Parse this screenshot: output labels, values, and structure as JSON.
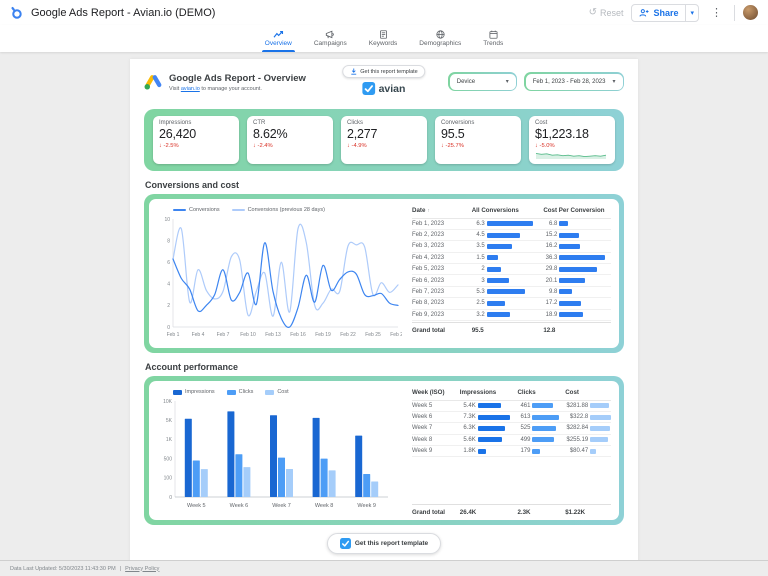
{
  "topbar": {
    "title": "Google Ads Report - Avian.io (DEMO)",
    "reset_label": "Reset",
    "share_label": "Share"
  },
  "tabs": [
    {
      "label": "Overview",
      "icon": "trending-up-icon",
      "active": true
    },
    {
      "label": "Campaigns",
      "icon": "megaphone-icon",
      "active": false
    },
    {
      "label": "Keywords",
      "icon": "document-icon",
      "active": false
    },
    {
      "label": "Demographics",
      "icon": "globe-icon",
      "active": false
    },
    {
      "label": "Trends",
      "icon": "calendar-icon",
      "active": false
    }
  ],
  "header": {
    "title": "Google Ads Report - Overview",
    "subtitle_prefix": "Visit ",
    "subtitle_link": "avian.io",
    "subtitle_suffix": " to manage your account.",
    "template_button": "Get this report template",
    "brand": "avian",
    "device_filter": "Device",
    "date_range": "Feb 1, 2023 - Feb 28, 2023"
  },
  "scorecards": [
    {
      "label": "Impressions",
      "value": "26,420",
      "delta": "-2.5%"
    },
    {
      "label": "CTR",
      "value": "8.62%",
      "delta": "-2.4%"
    },
    {
      "label": "Clicks",
      "value": "2,277",
      "delta": "-4.9%"
    },
    {
      "label": "Conversions",
      "value": "95.5",
      "delta": "-25.7%"
    },
    {
      "label": "Cost",
      "value": "$1,223.18",
      "delta": "-5.0%",
      "spark_color": "#57bb8a",
      "spark_values": [
        2.7,
        2.6,
        2.65,
        2.5,
        2.55,
        2.45,
        2.5,
        2.4,
        2.45,
        2.35,
        2.4,
        2.45,
        2.4,
        2.5
      ]
    }
  ],
  "sections": {
    "conversions": {
      "title": "Conversions and cost",
      "table": {
        "columns": [
          {
            "label": "Date",
            "sorted": true
          },
          {
            "label": "All Conversions",
            "sorted": false
          },
          {
            "label": "Cost Per Conversion",
            "sorted": false
          }
        ],
        "bar_colors": [
          "#2e7df0",
          "#2e7df0"
        ],
        "rows": [
          {
            "label": "Feb 1, 2023",
            "cells": [
              {
                "t": "6.3",
                "v": 6.3
              },
              {
                "t": "6.8",
                "v": 6.8
              }
            ]
          },
          {
            "label": "Feb 2, 2023",
            "cells": [
              {
                "t": "4.5",
                "v": 4.5
              },
              {
                "t": "15.2",
                "v": 15.2
              }
            ]
          },
          {
            "label": "Feb 3, 2023",
            "cells": [
              {
                "t": "3.5",
                "v": 3.5
              },
              {
                "t": "16.2",
                "v": 16.2
              }
            ]
          },
          {
            "label": "Feb 4, 2023",
            "cells": [
              {
                "t": "1.5",
                "v": 1.5
              },
              {
                "t": "36.3",
                "v": 36.3
              }
            ]
          },
          {
            "label": "Feb 5, 2023",
            "cells": [
              {
                "t": "2",
                "v": 2
              },
              {
                "t": "29.8",
                "v": 29.8
              }
            ]
          },
          {
            "label": "Feb 6, 2023",
            "cells": [
              {
                "t": "3",
                "v": 3
              },
              {
                "t": "20.1",
                "v": 20.1
              }
            ]
          },
          {
            "label": "Feb 7, 2023",
            "cells": [
              {
                "t": "5.3",
                "v": 5.3
              },
              {
                "t": "9.8",
                "v": 9.8
              }
            ]
          },
          {
            "label": "Feb 8, 2023",
            "cells": [
              {
                "t": "2.5",
                "v": 2.5
              },
              {
                "t": "17.2",
                "v": 17.2
              }
            ]
          },
          {
            "label": "Feb 9, 2023",
            "cells": [
              {
                "t": "3.2",
                "v": 3.2
              },
              {
                "t": "18.9",
                "v": 18.9
              }
            ]
          }
        ],
        "grand_total": {
          "label": "Grand total",
          "cells": [
            "95.5",
            "12.8"
          ]
        }
      }
    },
    "account": {
      "title": "Account performance",
      "table": {
        "columns": [
          {
            "label": "Week (ISO)",
            "sorted": false
          },
          {
            "label": "Impressions",
            "sorted": false
          },
          {
            "label": "Clicks",
            "sorted": false
          },
          {
            "label": "Cost",
            "sorted": false
          }
        ],
        "bar_colors": [
          "#1a73e8",
          "#4d9df6",
          "#a5cdfa"
        ],
        "rows": [
          {
            "label": "Week 5",
            "cells": [
              {
                "t": "5.4K",
                "v": 5400
              },
              {
                "t": "461",
                "v": 461
              },
              {
                "t": "$281.88",
                "v": 281.88
              }
            ]
          },
          {
            "label": "Week 6",
            "cells": [
              {
                "t": "7.3K",
                "v": 7300
              },
              {
                "t": "613",
                "v": 613
              },
              {
                "t": "$322.8",
                "v": 322.8
              }
            ]
          },
          {
            "label": "Week 7",
            "cells": [
              {
                "t": "6.3K",
                "v": 6300
              },
              {
                "t": "525",
                "v": 525
              },
              {
                "t": "$282.84",
                "v": 282.84
              }
            ]
          },
          {
            "label": "Week 8",
            "cells": [
              {
                "t": "5.6K",
                "v": 5600
              },
              {
                "t": "499",
                "v": 499
              },
              {
                "t": "$255.19",
                "v": 255.19
              }
            ]
          },
          {
            "label": "Week 9",
            "cells": [
              {
                "t": "1.8K",
                "v": 1800
              },
              {
                "t": "179",
                "v": 179
              },
              {
                "t": "$80.47",
                "v": 80.47
              }
            ]
          }
        ],
        "grand_total": {
          "label": "Grand total",
          "cells": [
            "26.4K",
            "2.3K",
            "$1.22K"
          ]
        }
      }
    }
  },
  "chart_data": [
    {
      "type": "line",
      "title": "Conversions and cost",
      "x_tick_labels": [
        "Feb 1",
        "Feb 4",
        "Feb 7",
        "Feb 10",
        "Feb 13",
        "Feb 16",
        "Feb 19",
        "Feb 22",
        "Feb 25",
        "Feb 28"
      ],
      "ylim": [
        0,
        10
      ],
      "y_ticks": [
        0,
        2,
        4,
        6,
        8,
        10
      ],
      "legend_position": "top",
      "grid": false,
      "series": [
        {
          "name": "Conversions",
          "color": "#3d85f0",
          "values": [
            6.3,
            4.5,
            3.5,
            1.5,
            2,
            3,
            5.3,
            2.5,
            3.2,
            5,
            2.1,
            7.8,
            3.3,
            0.8,
            0,
            1.8,
            4.8,
            2.3,
            5.7,
            3.4,
            4.4,
            5.1,
            4.9,
            3,
            2.9,
            3.1,
            2.2,
            2
          ]
        },
        {
          "name": "Conversions (previous 28 days)",
          "color": "#aecbfa",
          "values": [
            6.3,
            9.1,
            2.3,
            5.3,
            3.4,
            2.6,
            3.3,
            6.5,
            6.2,
            1.1,
            3.3,
            5,
            1,
            6,
            1.4,
            9.1,
            7.8,
            2,
            2.2,
            3.5,
            3.3,
            7.5,
            7.6,
            7.4,
            3,
            4.1,
            3.2,
            3.9
          ]
        }
      ]
    },
    {
      "type": "bar",
      "title": "Account performance",
      "categories": [
        "Week 5",
        "Week 6",
        "Week 7",
        "Week 8",
        "Week 9"
      ],
      "y_ticks": [
        0,
        100,
        500,
        1000,
        5000,
        10000
      ],
      "y_tick_labels": [
        "0",
        "100",
        "500",
        "1K",
        "5K",
        "10K"
      ],
      "scale": "piecewise",
      "legend_position": "top",
      "grid": false,
      "series": [
        {
          "name": "Impressions",
          "color": "#1967d2",
          "values": [
            5400,
            7300,
            6300,
            5600,
            1800
          ]
        },
        {
          "name": "Clicks",
          "color": "#4d9df6",
          "values": [
            461,
            613,
            525,
            499,
            179
          ]
        },
        {
          "name": "Cost",
          "color": "#a5cdfa",
          "values": [
            281.88,
            322.8,
            282.84,
            255.19,
            80.47
          ]
        }
      ]
    }
  ],
  "footer": {
    "button": "Get this report template",
    "updated": "Data Last Updated: 5/30/2023 11:43:30 PM",
    "divider": "|",
    "privacy": "Privacy Policy"
  }
}
